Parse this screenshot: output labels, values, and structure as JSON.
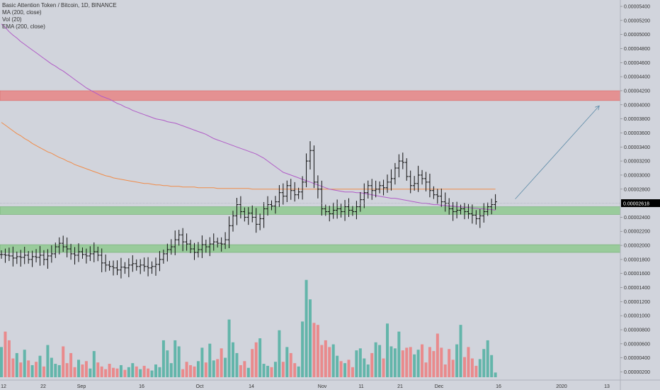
{
  "header": {
    "title": "Basic Attention Token / Bitcoin, 1D, BINANCE",
    "indicators": [
      "MA (200, close)",
      "Vol (20)",
      "EMA (200, close)"
    ]
  },
  "price_axis": {
    "labels": [
      "0.00005400",
      "0.00005200",
      "0.00005000",
      "0.00004800",
      "0.00004600",
      "0.00004400",
      "0.00004200",
      "0.00004000",
      "0.00003800",
      "0.00003600",
      "0.00003400",
      "0.00003200",
      "0.00003000",
      "0.00002800",
      "0.00002400",
      "0.00002200",
      "0.00002000",
      "0.00001800",
      "0.00001600",
      "0.00001400",
      "0.00001200",
      "0.00001000",
      "0.00000800",
      "0.00000600",
      "0.00000400",
      "0.00000200"
    ],
    "current_price_label": "0.00002618"
  },
  "time_axis": {
    "labels": [
      "12",
      "22",
      "Sep",
      "16",
      "Oct",
      "14",
      "Nov",
      "11",
      "21",
      "Dec",
      "16",
      "2020",
      "13"
    ]
  },
  "colors": {
    "background": "#d1d4dc",
    "candle": "#111111",
    "ma": "#b15cc7",
    "ema": "#f08c4a",
    "up_volume": "#63b5aa",
    "down_volume": "#e98a8c",
    "resistance_zone": "#e88585",
    "support_zone": "#8fc98f",
    "arrow": "#5b8aa7"
  },
  "chart_data": {
    "type": "candlestick",
    "symbol": "Basic Attention Token / Bitcoin",
    "interval": "1D",
    "exchange": "BINANCE",
    "ylim": [
      0,
      5.5e-05
    ],
    "current_price": 2.618e-05,
    "zones": [
      {
        "kind": "resistance",
        "low": 4.06e-05,
        "high": 4.2e-05
      },
      {
        "kind": "support",
        "low": 2.44e-05,
        "high": 2.55e-05
      },
      {
        "kind": "support",
        "low": 1.9e-05,
        "high": 2.01e-05
      }
    ],
    "closes": [
      1.87,
      1.86,
      1.85,
      1.82,
      1.84,
      1.83,
      1.86,
      1.8,
      1.84,
      1.83,
      1.86,
      1.8,
      1.85,
      1.88,
      1.98,
      2.03,
      1.98,
      1.95,
      1.88,
      1.86,
      1.91,
      1.87,
      1.85,
      1.88,
      1.91,
      1.86,
      1.75,
      1.72,
      1.7,
      1.68,
      1.65,
      1.69,
      1.68,
      1.72,
      1.74,
      1.7,
      1.72,
      1.7,
      1.68,
      1.7,
      1.73,
      1.8,
      1.88,
      1.94,
      1.98,
      2.08,
      2.15,
      2.05,
      2.02,
      1.95,
      1.9,
      1.94,
      2.01,
      1.98,
      2.02,
      2.05,
      2.03,
      2.02,
      2.08,
      2.28,
      2.42,
      2.58,
      2.48,
      2.4,
      2.46,
      2.4,
      2.3,
      2.38,
      2.52,
      2.58,
      2.56,
      2.62,
      2.75,
      2.7,
      2.85,
      2.78,
      2.72,
      2.76,
      2.9,
      3.2,
      3.35,
      2.9,
      2.8,
      2.52,
      2.48,
      2.45,
      2.5,
      2.52,
      2.48,
      2.55,
      2.5,
      2.48,
      2.55,
      2.65,
      2.75,
      2.85,
      2.78,
      2.8,
      2.85,
      2.82,
      2.9,
      2.95,
      3.1,
      3.2,
      3.18,
      2.98,
      2.85,
      2.88,
      3.0,
      2.95,
      2.9,
      2.78,
      2.72,
      2.7,
      2.62,
      2.6,
      2.52,
      2.48,
      2.5,
      2.52,
      2.48,
      2.45,
      2.43,
      2.38,
      2.42,
      2.48,
      2.55,
      2.58,
      2.62
    ],
    "volume_ylim": [
      0,
      1.5e-05
    ],
    "volumes": [
      4.5,
      6.8,
      5.5,
      2.8,
      3.6,
      2.2,
      4.1,
      2.5,
      1.8,
      2.3,
      3.2,
      1.6,
      4.8,
      2.9,
      2.0,
      1.8,
      4.6,
      2.1,
      3.6,
      1.5,
      2.6,
      1.9,
      2.4,
      1.3,
      3.9,
      2.2,
      1.6,
      1.2,
      2.0,
      1.4,
      1.3,
      1.8,
      1.1,
      1.5,
      2.1,
      1.6,
      1.2,
      1.7,
      1.3,
      1.0,
      1.9,
      1.5,
      5.5,
      4.0,
      2.1,
      5.5,
      4.6,
      1.2,
      2.3,
      1.8,
      1.6,
      2.4,
      4.4,
      2.2,
      5.0,
      2.5,
      2.7,
      4.3,
      2.9,
      8.6,
      5.2,
      3.6,
      1.8,
      2.4,
      1.4,
      4.2,
      5.2,
      5.8,
      2.0,
      1.7,
      1.5,
      2.3,
      7.0,
      2.3,
      4.5,
      3.6,
      2.1,
      1.6,
      8.3,
      14.5,
      11.6,
      8.1,
      7.8,
      4.8,
      5.5,
      4.5,
      4.9,
      3.2,
      2.4,
      2.1,
      2.6,
      1.5,
      4.0,
      4.3,
      2.8,
      1.9,
      3.6,
      5.2,
      4.8,
      2.8,
      8.0,
      4.6,
      4.3,
      6.8,
      4.0,
      4.4,
      4.5,
      3.4,
      4.1,
      4.9,
      2.2,
      4.5,
      3.9,
      6.5,
      4.4,
      1.9,
      4.2,
      2.6,
      4.9,
      7.8,
      3.0,
      4.5,
      2.8,
      1.7,
      2.7,
      4.2,
      5.5,
      3.3,
      0.7
    ],
    "ma200": [
      5.15,
      5.1,
      5.04,
      4.99,
      4.95,
      4.9,
      4.86,
      4.82,
      4.78,
      4.74,
      4.7,
      4.66,
      4.62,
      4.58,
      4.55,
      4.51,
      4.48,
      4.44,
      4.4,
      4.36,
      4.32,
      4.28,
      4.24,
      4.21,
      4.18,
      4.15,
      4.12,
      4.1,
      4.08,
      4.05,
      4.02,
      4.0,
      3.97,
      3.95,
      3.92,
      3.9,
      3.88,
      3.86,
      3.84,
      3.82,
      3.8,
      3.79,
      3.78,
      3.76,
      3.75,
      3.74,
      3.72,
      3.7,
      3.68,
      3.66,
      3.64,
      3.62,
      3.6,
      3.58,
      3.55,
      3.52,
      3.5,
      3.48,
      3.46,
      3.44,
      3.42,
      3.4,
      3.38,
      3.36,
      3.34,
      3.32,
      3.3,
      3.27,
      3.24,
      3.2,
      3.16,
      3.12,
      3.08,
      3.04,
      3.02,
      3.0,
      2.98,
      2.96,
      2.94,
      2.92,
      2.9,
      2.88,
      2.86,
      2.84,
      2.82,
      2.8,
      2.79,
      2.78,
      2.77,
      2.76,
      2.76,
      2.76,
      2.75,
      2.75,
      2.74,
      2.73,
      2.72,
      2.71,
      2.7,
      2.69,
      2.68,
      2.67,
      2.67,
      2.66,
      2.65,
      2.64,
      2.63,
      2.62,
      2.61,
      2.6,
      2.6,
      2.59,
      2.58,
      2.58,
      2.57,
      2.57,
      2.56,
      2.56,
      2.55,
      2.55,
      2.54,
      2.54,
      2.53,
      2.53,
      2.52,
      2.52,
      2.51,
      2.51,
      2.5
    ],
    "ema200": [
      3.75,
      3.71,
      3.67,
      3.63,
      3.59,
      3.56,
      3.52,
      3.49,
      3.45,
      3.42,
      3.39,
      3.36,
      3.33,
      3.31,
      3.28,
      3.25,
      3.23,
      3.2,
      3.18,
      3.15,
      3.13,
      3.11,
      3.09,
      3.07,
      3.05,
      3.03,
      3.01,
      2.99,
      2.98,
      2.96,
      2.95,
      2.94,
      2.93,
      2.92,
      2.91,
      2.9,
      2.89,
      2.88,
      2.88,
      2.87,
      2.86,
      2.86,
      2.85,
      2.85,
      2.84,
      2.84,
      2.84,
      2.83,
      2.83,
      2.83,
      2.83,
      2.82,
      2.82,
      2.82,
      2.82,
      2.82,
      2.81,
      2.81,
      2.81,
      2.81,
      2.81,
      2.81,
      2.81,
      2.81,
      2.81,
      2.8,
      2.8,
      2.8,
      2.8,
      2.8,
      2.8,
      2.8,
      2.8,
      2.8,
      2.8,
      2.8,
      2.8,
      2.8,
      2.8,
      2.8,
      2.8,
      2.8,
      2.8,
      2.8,
      2.8,
      2.8,
      2.8,
      2.8,
      2.8,
      2.8,
      2.8,
      2.8,
      2.8,
      2.8,
      2.8,
      2.8,
      2.8,
      2.8,
      2.8,
      2.8,
      2.8,
      2.8,
      2.8,
      2.8,
      2.8,
      2.8,
      2.8,
      2.8,
      2.8,
      2.8,
      2.8,
      2.8,
      2.8,
      2.8,
      2.8,
      2.8,
      2.8,
      2.8,
      2.8,
      2.8,
      2.8,
      2.8,
      2.8,
      2.8,
      2.8,
      2.8,
      2.8,
      2.8,
      2.8
    ],
    "projection_arrow": {
      "start_price": 2.62e-05,
      "end_price": 3.98e-05,
      "start_index": 128,
      "end_index": 146
    }
  }
}
